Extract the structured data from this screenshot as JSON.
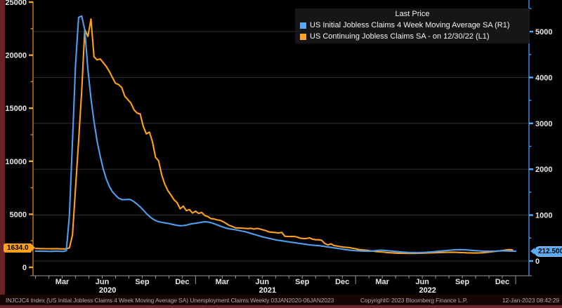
{
  "legend": {
    "title": "Last Price",
    "items": [
      {
        "label": "US Initial Jobless Claims 4 Week Moving Average SA  (R1)",
        "color": "#55a8fa"
      },
      {
        "label": "US Continuing Jobless Claims SA -  on 12/30/22  (L1)",
        "color": "#ffa81e"
      }
    ]
  },
  "badges": {
    "left": {
      "value": "1634.0",
      "color": "#ffa11c"
    },
    "right": {
      "value": "212.500",
      "color": "#5aa9f5"
    }
  },
  "status_bar": {
    "description": "INJCJC4 Index (US Initial Jobless Claims 4 Week Moving Average SA) Unemployment Claims  Weekly 03JAN2020-06JAN2023",
    "copyright": "Copyright© 2023 Bloomberg Finance L.P.",
    "timestamp": "12-Jan-2023 08:42:29"
  },
  "chart_data": {
    "type": "line",
    "title": "Last Price",
    "x_unit": "weekly",
    "x_range": [
      "03JAN2020",
      "06JAN2023"
    ],
    "x_axis": {
      "month_labels": [
        "Mar",
        "Jun",
        "Sep",
        "Dec",
        "Mar",
        "Jun",
        "Sep",
        "Dec",
        "Mar",
        "Jun",
        "Sep",
        "Dec"
      ],
      "year_labels": [
        "2020",
        "2021",
        "2022"
      ]
    },
    "left_axis": {
      "series": "US Continuing Jobless Claims SA",
      "min": 0,
      "max": 25000,
      "ticks": [
        0,
        5000,
        10000,
        15000,
        20000,
        25000
      ],
      "color": "#c87f28"
    },
    "right_axis": {
      "series": "US Initial Jobless Claims 4 Week Moving Average SA",
      "min": 0,
      "max": 5000,
      "ticks": [
        0,
        1000,
        2000,
        3000,
        4000,
        5000
      ],
      "color": "#4593e6"
    },
    "grid": "horizontal",
    "legend_position": "top-right",
    "series": [
      {
        "name": "US Continuing Jobless Claims SA",
        "axis": "left",
        "color": "#ffa11c",
        "last_value": 1634.0,
        "last_date": "12/30/22",
        "values": [
          1770,
          1765,
          1760,
          1755,
          1750,
          1745,
          1748,
          1744,
          1740,
          1736,
          1742,
          1830,
          3059,
          7446,
          11914,
          16620,
          22420,
          21760,
          23400,
          19850,
          19560,
          19640,
          19290,
          18920,
          18460,
          17880,
          17346,
          17224,
          16944,
          16140,
          15800,
          15480,
          14844,
          14535,
          14466,
          13292,
          12580,
          12747,
          11808,
          10380,
          10018,
          8705,
          7823,
          7222,
          6803,
          6370,
          6089,
          5519,
          5765,
          5337,
          5440,
          5114,
          5289,
          5072,
          5170,
          4878,
          4780,
          4592,
          4558,
          4469,
          4424,
          4300,
          4123,
          3940,
          3840,
          3717,
          3708,
          3693,
          3680,
          3653,
          3676,
          3602,
          3672,
          3605,
          3520,
          3440,
          3330,
          3300,
          3269,
          3241,
          3296,
          2930,
          2908,
          2899,
          2908,
          2850,
          2748,
          2715,
          2710,
          2779,
          2649,
          2600,
          2600,
          2540,
          2239,
          2109,
          2215,
          2049,
          2006,
          1950,
          1907,
          1880,
          1856,
          1795,
          1753,
          1672,
          1650,
          1628,
          1593,
          1546,
          1506,
          1476,
          1454,
          1432,
          1402,
          1378,
          1360,
          1345,
          1332,
          1322,
          1316,
          1312,
          1310,
          1312,
          1318,
          1326,
          1336,
          1348,
          1360,
          1372,
          1384,
          1395,
          1404,
          1412,
          1418,
          1420,
          1416,
          1408,
          1398,
          1386,
          1372,
          1360,
          1352,
          1350,
          1356,
          1370,
          1392,
          1420,
          1452,
          1486,
          1520,
          1560,
          1596,
          1640,
          1672,
          1634
        ]
      },
      {
        "name": "US Initial Jobless Claims 4 Week Moving Average SA",
        "axis": "right",
        "color": "#4f9ff0",
        "last_value": 212.5,
        "last_date": "01/06/23",
        "values": [
          215,
          214,
          213,
          212,
          211,
          210,
          212,
          213,
          211,
          210,
          225,
          998,
          2612,
          4268,
          5310,
          5340,
          5035,
          4173,
          3540,
          3043,
          2608,
          2288,
          2002,
          1783,
          1622,
          1508,
          1435,
          1368,
          1340,
          1337,
          1342,
          1335,
          1292,
          1238,
          1180,
          1112,
          1036,
          972,
          920,
          882,
          858,
          842,
          830,
          820,
          806,
          790,
          776,
          768,
          772,
          782,
          800,
          814,
          822,
          832,
          845,
          855,
          850,
          836,
          812,
          788,
          762,
          738,
          716,
          700,
          690,
          680,
          666,
          652,
          640,
          621,
          601,
          581,
          561,
          541,
          521,
          506,
          491,
          476,
          462,
          450,
          440,
          430,
          420,
          410,
          400,
          390,
          380,
          371,
          362,
          352,
          346,
          340,
          335,
          326,
          316,
          306,
          296,
          286,
          276,
          266,
          256,
          246,
          238,
          230,
          225,
          221,
          217,
          214,
          212,
          215,
          222,
          230,
          236,
          232,
          226,
          220,
          214,
          208,
          202,
          196,
          191,
          187,
          184,
          182,
          181,
          183,
          186,
          190,
          195,
          201,
          207,
          213,
          219,
          225,
          231,
          237,
          242,
          246,
          248,
          245,
          241,
          236,
          231,
          226,
          221,
          217,
          214,
          212,
          212,
          214,
          217,
          220,
          221,
          219,
          216,
          214,
          212.5
        ]
      }
    ]
  }
}
